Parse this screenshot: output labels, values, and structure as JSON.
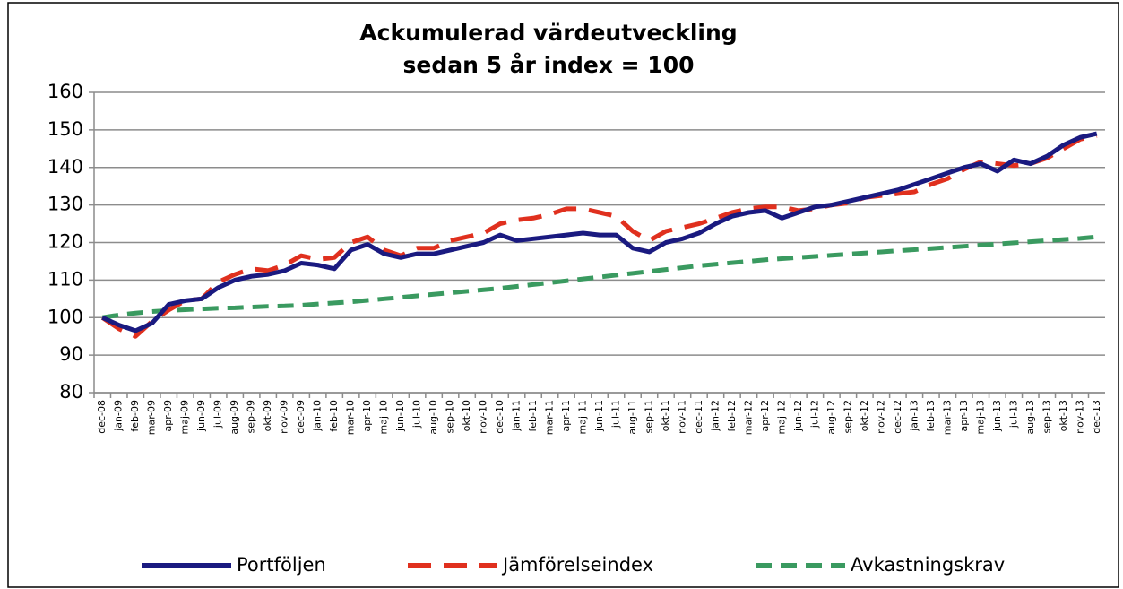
{
  "chart_data": {
    "type": "line",
    "title": "Ackumulerad värdeutveckling",
    "subtitle": "sedan 5 år index = 100",
    "categories": [
      "dec-08",
      "jan-09",
      "feb-09",
      "mar-09",
      "apr-09",
      "maj-09",
      "jun-09",
      "jul-09",
      "aug-09",
      "sep-09",
      "okt-09",
      "nov-09",
      "dec-09",
      "jan-10",
      "feb-10",
      "mar-10",
      "apr-10",
      "maj-10",
      "jun-10",
      "jul-10",
      "aug-10",
      "sep-10",
      "okt-10",
      "nov-10",
      "dec-10",
      "jan-11",
      "feb-11",
      "mar-11",
      "apr-11",
      "maj-11",
      "jun-11",
      "jul-11",
      "aug-11",
      "sep-11",
      "okt-11",
      "nov-11",
      "dec-11",
      "jan-12",
      "feb-12",
      "mar-12",
      "apr-12",
      "maj-12",
      "jun-12",
      "jul-12",
      "aug-12",
      "sep-12",
      "okt-12",
      "nov-12",
      "dec-12",
      "jan-13",
      "feb-13",
      "mar-13",
      "apr-13",
      "maj-13",
      "jun-13",
      "jul-13",
      "aug-13",
      "sep-13",
      "okt-13",
      "nov-13",
      "dec-13"
    ],
    "series": [
      {
        "name": "Portföljen",
        "color": "#1a1a80",
        "dash": "solid",
        "values": [
          100,
          98,
          96.5,
          98.5,
          103.5,
          104.5,
          105,
          108,
          110,
          111,
          111.5,
          112.5,
          114.5,
          114,
          113,
          118,
          119.5,
          117,
          116,
          117,
          117,
          118,
          119,
          120,
          122,
          120.5,
          121,
          121.5,
          122,
          122.5,
          122,
          122,
          118.5,
          117.5,
          120,
          121,
          122.5,
          125,
          127,
          128,
          128.5,
          126.5,
          128,
          129.5,
          130,
          131,
          132,
          133,
          134,
          135.5,
          137,
          138.5,
          140,
          141,
          139,
          142,
          141,
          143,
          146,
          148,
          149
        ]
      },
      {
        "name": "Jämförelseindex",
        "color": "#e0301e",
        "dash": "long",
        "values": [
          100,
          97,
          95,
          99,
          102,
          104.5,
          105,
          109.5,
          111.5,
          113,
          112.5,
          114,
          116.5,
          115.5,
          116,
          120,
          121.5,
          118,
          116.5,
          118.5,
          118.5,
          120.5,
          121.5,
          122.5,
          125,
          126,
          126.5,
          127.5,
          129,
          129,
          128,
          127,
          123,
          120.5,
          123,
          124,
          125,
          126.5,
          128,
          129,
          129.5,
          129.5,
          128.5,
          129,
          130,
          130.5,
          132,
          132.5,
          133,
          133.5,
          135.5,
          137,
          139.5,
          141.5,
          141,
          140.5,
          141,
          142.5,
          145,
          147.5,
          148.5
        ]
      },
      {
        "name": "Avkastningskrav",
        "color": "#3a9a60",
        "dash": "short",
        "values": [
          100,
          100.7,
          101.2,
          101.6,
          101.9,
          102.1,
          102.3,
          102.5,
          102.6,
          102.8,
          103,
          103.1,
          103.3,
          103.6,
          103.9,
          104.2,
          104.6,
          105,
          105.4,
          105.8,
          106.2,
          106.6,
          107,
          107.4,
          107.8,
          108.3,
          108.8,
          109.3,
          109.8,
          110.3,
          110.8,
          111.3,
          111.8,
          112.3,
          112.8,
          113.3,
          113.8,
          114.2,
          114.6,
          115,
          115.4,
          115.7,
          116,
          116.3,
          116.6,
          116.9,
          117.2,
          117.5,
          117.8,
          118.1,
          118.4,
          118.7,
          119,
          119.3,
          119.6,
          119.9,
          120.2,
          120.5,
          120.8,
          121.1,
          121.5
        ]
      }
    ],
    "ylim": [
      80,
      160
    ],
    "yticks": [
      80,
      90,
      100,
      110,
      120,
      130,
      140,
      150,
      160
    ],
    "grid": true,
    "legend": "bottom"
  }
}
